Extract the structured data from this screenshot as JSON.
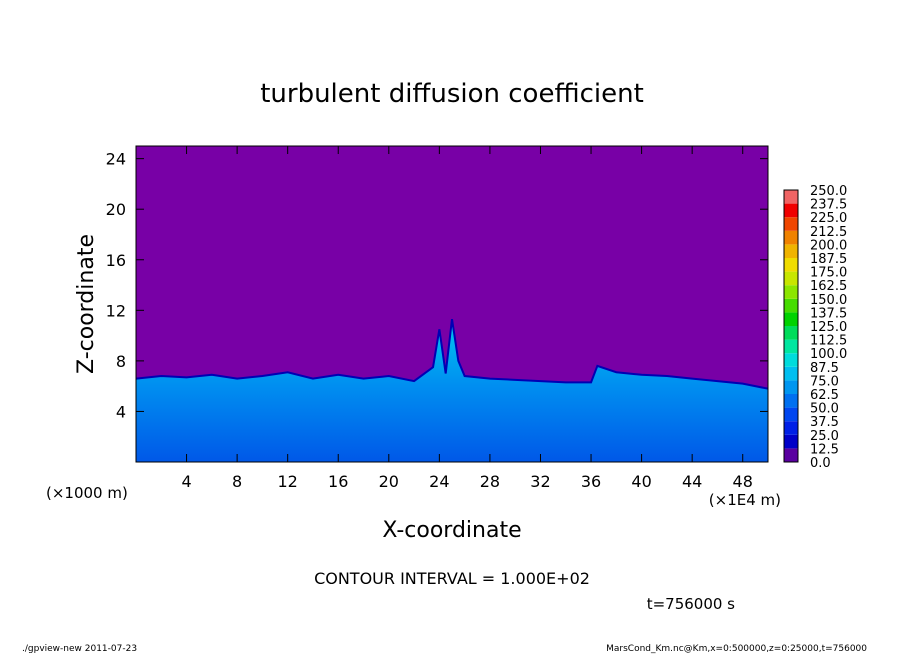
{
  "chart_data": {
    "type": "heatmap",
    "title": "turbulent diffusion coefficient",
    "xlabel": "X-coordinate",
    "ylabel": "Z-coordinate",
    "x_unit_left": "(×1000 m)",
    "x_unit_right": "(×1E4 m)",
    "xlim": [
      0,
      50
    ],
    "ylim": [
      0,
      25
    ],
    "x_ticks": [
      4,
      8,
      12,
      16,
      20,
      24,
      28,
      32,
      36,
      40,
      44,
      48
    ],
    "y_ticks": [
      4,
      8,
      12,
      16,
      20,
      24
    ],
    "colorbar": {
      "levels": [
        "0.0",
        "12.5",
        "25.0",
        "37.5",
        "50.0",
        "62.5",
        "75.0",
        "87.5",
        "100.0",
        "112.5",
        "125.0",
        "137.5",
        "150.0",
        "162.5",
        "175.0",
        "187.5",
        "200.0",
        "212.5",
        "225.0",
        "237.5",
        "250.0"
      ],
      "colors": [
        "#5a00a0",
        "#0000c8",
        "#0020e6",
        "#0046f0",
        "#0070f0",
        "#0096f0",
        "#00bff0",
        "#00dcdc",
        "#00e6a0",
        "#00dc5a",
        "#00d200",
        "#46dc00",
        "#8ce600",
        "#c8e600",
        "#f0dc00",
        "#f0b400",
        "#f08200",
        "#f04600",
        "#f00000",
        "#f06464"
      ]
    },
    "background_color": "#7800a6",
    "boundary_layer_top": {
      "x": [
        0,
        2,
        4,
        6,
        8,
        10,
        12,
        14,
        16,
        18,
        20,
        22,
        23.5,
        24,
        24.5,
        25,
        25.5,
        26,
        28,
        30,
        32,
        34,
        36,
        36.5,
        38,
        40,
        42,
        44,
        46,
        48,
        50
      ],
      "z": [
        6.6,
        6.8,
        6.7,
        6.9,
        6.6,
        6.8,
        7.1,
        6.6,
        6.9,
        6.6,
        6.8,
        6.4,
        7.5,
        10.5,
        7.0,
        11.3,
        8.0,
        6.8,
        6.6,
        6.5,
        6.4,
        6.3,
        6.3,
        7.6,
        7.1,
        6.9,
        6.8,
        6.6,
        6.4,
        6.2,
        5.8
      ]
    },
    "annotation": "CONTOUR INTERVAL = 1.000E+02",
    "time_label": "t=756000 s"
  },
  "footer": {
    "left": "./gpview-new   2011-07-23",
    "right": "MarsCond_Km.nc@Km,x=0:500000,z=0:25000,t=756000"
  }
}
